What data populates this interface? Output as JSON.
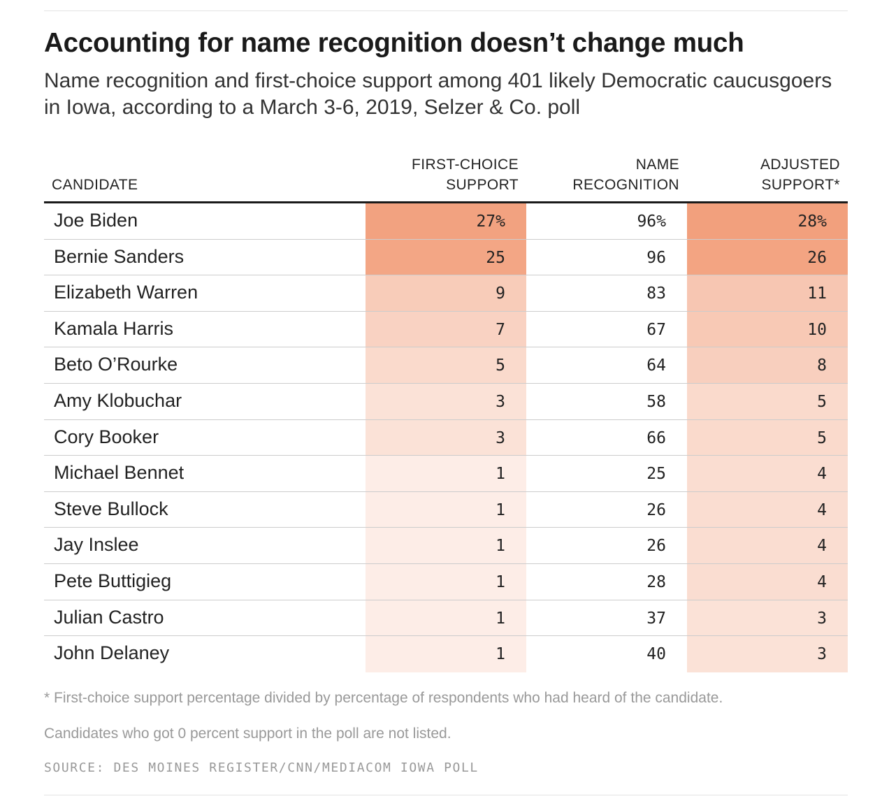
{
  "chart_data": {
    "type": "table",
    "title": "Accounting for name recognition doesn’t change much",
    "subtitle": "Name recognition and first-choice support among 401 likely Democratic caucusgoers in Iowa, according to a March 3-6, 2019, Selzer & Co. poll",
    "columns": [
      {
        "line1": "",
        "line2": "CANDIDATE"
      },
      {
        "line1": "FIRST-CHOICE",
        "line2": "SUPPORT"
      },
      {
        "line1": "NAME",
        "line2": "RECOGNITION"
      },
      {
        "line1": "ADJUSTED",
        "line2": "SUPPORT*"
      }
    ],
    "rows": [
      {
        "candidate": "Joe Biden",
        "first_choice": "27%",
        "name_recognition": "96%",
        "adjusted": "28%"
      },
      {
        "candidate": "Bernie Sanders",
        "first_choice": "25",
        "name_recognition": "96",
        "adjusted": "26"
      },
      {
        "candidate": "Elizabeth Warren",
        "first_choice": "9",
        "name_recognition": "83",
        "adjusted": "11"
      },
      {
        "candidate": "Kamala Harris",
        "first_choice": "7",
        "name_recognition": "67",
        "adjusted": "10"
      },
      {
        "candidate": "Beto O’Rourke",
        "first_choice": "5",
        "name_recognition": "64",
        "adjusted": "8"
      },
      {
        "candidate": "Amy Klobuchar",
        "first_choice": "3",
        "name_recognition": "58",
        "adjusted": "5"
      },
      {
        "candidate": "Cory Booker",
        "first_choice": "3",
        "name_recognition": "66",
        "adjusted": "5"
      },
      {
        "candidate": "Michael Bennet",
        "first_choice": "1",
        "name_recognition": "25",
        "adjusted": "4"
      },
      {
        "candidate": "Steve Bullock",
        "first_choice": "1",
        "name_recognition": "26",
        "adjusted": "4"
      },
      {
        "candidate": "Jay Inslee",
        "first_choice": "1",
        "name_recognition": "26",
        "adjusted": "4"
      },
      {
        "candidate": "Pete Buttigieg",
        "first_choice": "1",
        "name_recognition": "28",
        "adjusted": "4"
      },
      {
        "candidate": "Julian Castro",
        "first_choice": "1",
        "name_recognition": "37",
        "adjusted": "3"
      },
      {
        "candidate": "John Delaney",
        "first_choice": "1",
        "name_recognition": "40",
        "adjusted": "3"
      }
    ],
    "heat_color": "#f2a07d",
    "heat_max": 28,
    "heat_columns": [
      "first_choice",
      "adjusted"
    ]
  },
  "footnote": "* First-choice support percentage divided by percentage of respondents who had heard of the candidate.",
  "note": "Candidates who got 0 percent support in the poll are not listed.",
  "source": "SOURCE: DES MOINES REGISTER/CNN/MEDIACOM IOWA POLL"
}
